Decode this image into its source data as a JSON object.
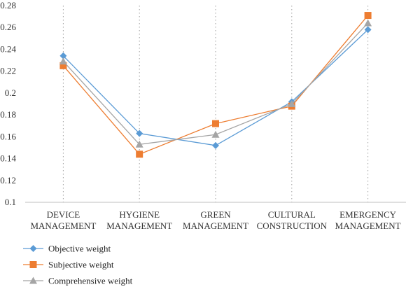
{
  "chart_data": {
    "type": "line",
    "categories": [
      [
        "DEVICE",
        "MANAGEMENT"
      ],
      [
        "HYGIENE",
        "MANAGEMENT"
      ],
      [
        "GREEN",
        "MANAGEMENT"
      ],
      [
        "CULTURAL",
        "CONSTRUCTION"
      ],
      [
        "EMERGENCY",
        "MANAGEMENT"
      ]
    ],
    "series": [
      {
        "name": "Objective weight",
        "values": [
          0.234,
          0.163,
          0.152,
          0.192,
          0.258
        ],
        "color": "#5b9bd5",
        "marker": "diamond"
      },
      {
        "name": "Subjective weight",
        "values": [
          0.225,
          0.144,
          0.172,
          0.188,
          0.271
        ],
        "color": "#ed7d31",
        "marker": "square"
      },
      {
        "name": "Comprehensive weight",
        "values": [
          0.229,
          0.153,
          0.162,
          0.19,
          0.264
        ],
        "color": "#a5a5a5",
        "marker": "triangle"
      }
    ],
    "ylim": [
      0.1,
      0.28
    ],
    "yticks": [
      "0.1",
      "0.12",
      "0.14",
      "0.16",
      "0.18",
      "0.2",
      "0.22",
      "0.24",
      "0.26",
      "0.28"
    ],
    "grid": "vertical-dotted",
    "legend_position": "bottom-left"
  }
}
